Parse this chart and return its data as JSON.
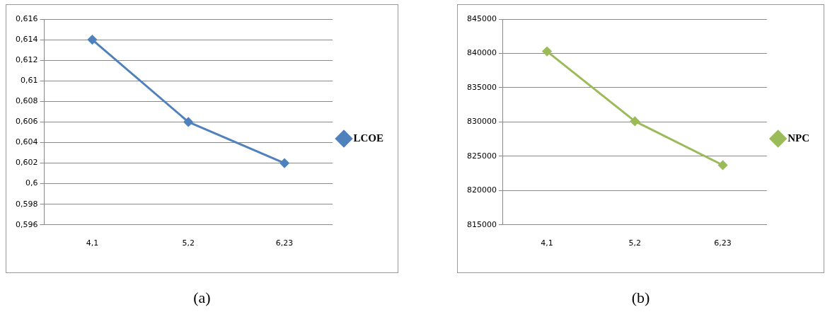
{
  "chart_data": [
    {
      "type": "line",
      "categories": [
        "4,1",
        "5,2",
        "6,23"
      ],
      "series": [
        {
          "name": "LCOE",
          "color": "#4f81bd",
          "values": [
            0.614,
            0.606,
            0.602
          ]
        }
      ],
      "ylim": [
        0.596,
        0.616
      ],
      "yticks": [
        {
          "value": 0.596,
          "label": "0,596"
        },
        {
          "value": 0.598,
          "label": "0,598"
        },
        {
          "value": 0.6,
          "label": "0,6"
        },
        {
          "value": 0.602,
          "label": "0,602"
        },
        {
          "value": 0.604,
          "label": "0,604"
        },
        {
          "value": 0.606,
          "label": "0,606"
        },
        {
          "value": 0.608,
          "label": "0,608"
        },
        {
          "value": 0.61,
          "label": "0,61"
        },
        {
          "value": 0.612,
          "label": "0,612"
        },
        {
          "value": 0.614,
          "label": "0,614"
        },
        {
          "value": 0.616,
          "label": "0,616"
        }
      ],
      "grid": "y",
      "legend": "right",
      "marker": "diamond",
      "line_style": "solid",
      "annotations": [
        "(a)"
      ]
    },
    {
      "type": "line",
      "categories": [
        "4,1",
        "5,2",
        "6,23"
      ],
      "series": [
        {
          "name": "NPC",
          "color": "#9bbb59",
          "values": [
            840300,
            830100,
            823700
          ]
        }
      ],
      "ylim": [
        815000,
        845000
      ],
      "yticks": [
        815000,
        820000,
        825000,
        830000,
        835000,
        840000,
        845000
      ],
      "grid": "y",
      "legend": "right",
      "marker": "diamond",
      "line_style": "solid",
      "annotations": [
        "(b)"
      ]
    }
  ]
}
